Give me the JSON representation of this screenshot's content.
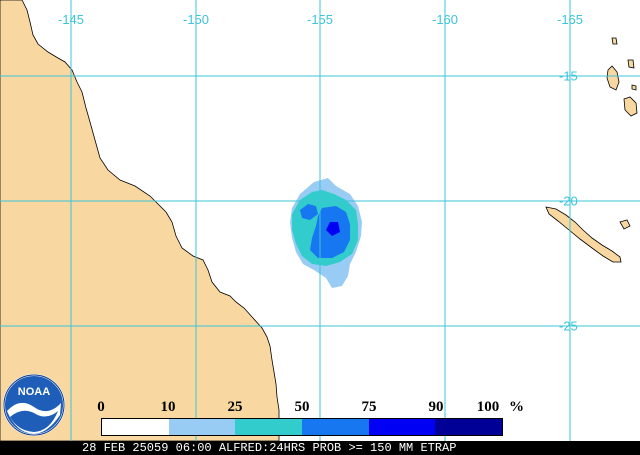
{
  "map": {
    "longitude_labels": [
      "-145",
      "-150",
      "-155",
      "-160",
      "-165"
    ],
    "latitude_labels": [
      "-15",
      "-20",
      "-25"
    ],
    "colors": {
      "land": "#f8d8a0",
      "ocean": "#ffffff",
      "grid": "#3cc4d8",
      "coast": "#000000"
    }
  },
  "legend": {
    "tick_labels": [
      "0",
      "10",
      "25",
      "50",
      "75",
      "90",
      "100"
    ],
    "unit": "%",
    "colors": [
      "#ffffff",
      "#99ccf4",
      "#33cccc",
      "#1677f0",
      "#0000f5",
      "#000096"
    ]
  },
  "logo": {
    "text": "NOAA"
  },
  "caption": "28 FEB 25059 06:00 ALFRED:24HRS PROB >= 150 MM ETRAP"
}
